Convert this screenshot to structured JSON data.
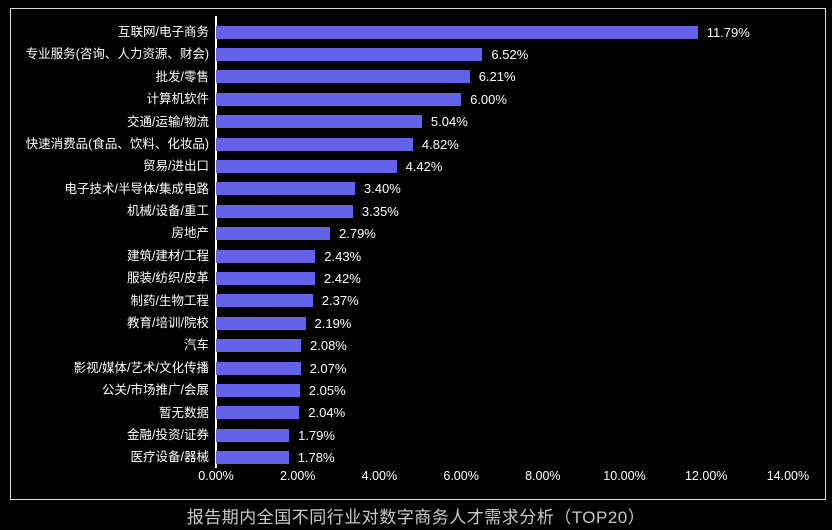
{
  "chart_data": {
    "type": "bar",
    "orientation": "horizontal",
    "title": "报告期内全国不同行业对数字商务人才需求分析（TOP20）",
    "categories": [
      "互联网/电子商务",
      "专业服务(咨询、人力资源、财会)",
      "批发/零售",
      "计算机软件",
      "交通/运输/物流",
      "快速消费品(食品、饮料、化妆品)",
      "贸易/进出口",
      "电子技术/半导体/集成电路",
      "机械/设备/重工",
      "房地产",
      "建筑/建材/工程",
      "服装/纺织/皮革",
      "制药/生物工程",
      "教育/培训/院校",
      "汽车",
      "影视/媒体/艺术/文化传播",
      "公关/市场推广/会展",
      "暂无数据",
      "金融/投资/证券",
      "医疗设备/器械"
    ],
    "values": [
      11.79,
      6.52,
      6.21,
      6.0,
      5.04,
      4.82,
      4.42,
      3.4,
      3.35,
      2.79,
      2.43,
      2.42,
      2.37,
      2.19,
      2.08,
      2.07,
      2.05,
      2.04,
      1.79,
      1.78
    ],
    "value_labels": [
      "11.79%",
      "6.52%",
      "6.21%",
      "6.00%",
      "5.04%",
      "4.82%",
      "4.42%",
      "3.40%",
      "3.35%",
      "2.79%",
      "2.43%",
      "2.42%",
      "2.37%",
      "2.19%",
      "2.08%",
      "2.07%",
      "2.05%",
      "2.04%",
      "1.79%",
      "1.78%"
    ],
    "x_ticks": [
      "0.00%",
      "2.00%",
      "4.00%",
      "6.00%",
      "8.00%",
      "10.00%",
      "12.00%",
      "14.00%"
    ],
    "xlim": [
      0,
      14
    ],
    "grid": false,
    "legend": false,
    "layout": {
      "legend_position": "none",
      "value_labels_outside_bars": true
    },
    "colors": {
      "background": "#000000",
      "bar": "#6362E8",
      "text": "#FFFFFF",
      "title": "#C9C9C9",
      "frame_border": "#DCDCDC",
      "axis_line": "#FFFFFF"
    }
  }
}
